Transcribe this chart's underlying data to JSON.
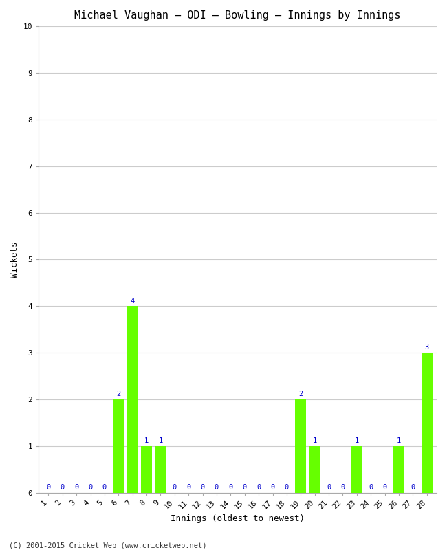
{
  "title": "Michael Vaughan – ODI – Bowling – Innings by Innings",
  "xlabel": "Innings (oldest to newest)",
  "ylabel": "Wickets",
  "ylim": [
    0,
    10
  ],
  "yticks": [
    0,
    1,
    2,
    3,
    4,
    5,
    6,
    7,
    8,
    9,
    10
  ],
  "innings": [
    1,
    2,
    3,
    4,
    5,
    6,
    7,
    8,
    9,
    10,
    11,
    12,
    13,
    14,
    15,
    16,
    17,
    18,
    19,
    20,
    21,
    22,
    23,
    24,
    25,
    26,
    27,
    28
  ],
  "wickets": [
    0,
    0,
    0,
    0,
    0,
    2,
    4,
    1,
    1,
    0,
    0,
    0,
    0,
    0,
    0,
    0,
    0,
    0,
    2,
    1,
    0,
    0,
    1,
    0,
    0,
    1,
    0,
    3
  ],
  "bar_color": "#66ff00",
  "label_color": "#0000cc",
  "background_color": "#ffffff",
  "grid_color": "#cccccc",
  "footer": "(C) 2001-2015 Cricket Web (www.cricketweb.net)",
  "title_fontsize": 11,
  "axis_label_fontsize": 9,
  "tick_fontsize": 8,
  "label_fontsize": 7.5,
  "footer_fontsize": 7.5
}
